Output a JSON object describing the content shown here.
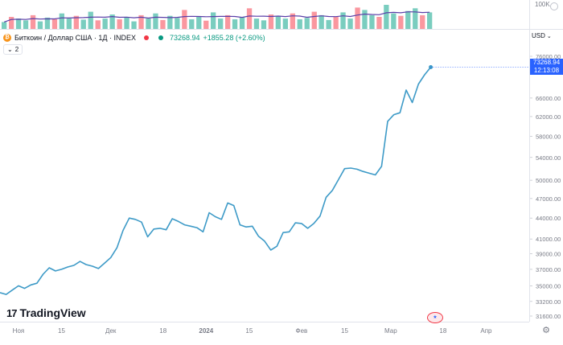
{
  "header": {
    "title": "Биткоин / Доллар США · 1Д · INDEX",
    "price": "73268.94",
    "change": "+1855.28 (+2.60%)",
    "collapse_count": "2",
    "currency": "USD"
  },
  "volume": {
    "axis_label": "100K",
    "values": [
      20,
      35,
      30,
      25,
      40,
      22,
      33,
      28,
      45,
      30,
      38,
      27,
      50,
      25,
      30,
      42,
      28,
      35,
      22,
      40,
      30,
      45,
      26,
      38,
      32,
      55,
      28,
      36,
      24,
      48,
      30,
      40,
      28,
      35,
      60,
      30,
      25,
      42,
      38,
      30,
      45,
      28,
      32,
      50,
      40,
      26,
      35,
      48,
      30,
      62,
      55,
      40,
      35,
      70,
      45,
      38,
      52,
      60,
      40,
      48
    ],
    "up_color": "#22ab94",
    "down_color": "#f7525f"
  },
  "price_axis_labels": [
    "76000.00",
    "66000.00",
    "62000.00",
    "58000.00",
    "54000.00",
    "50000.00",
    "47000.00",
    "44000.00",
    "41000.00",
    "39000.00",
    "37000.00",
    "35000.00",
    "33200.00",
    "31600.00"
  ],
  "last_tag": {
    "price": "73268.94",
    "countdown": "12:13:08"
  },
  "time_axis_labels": [
    "Ноя",
    "15",
    "Дек",
    "18",
    "2024",
    "15",
    "Фев",
    "15",
    "Мар",
    "18",
    "Апр"
  ],
  "logo": {
    "text": "TradingView",
    "mark": "17"
  },
  "chart_data": {
    "type": "line",
    "title": "Биткоин / Доллар США · 1Д · INDEX",
    "x_range": [
      "2023-10-26",
      "2024-04-15"
    ],
    "ylim": [
      31600,
      76000
    ],
    "y_scale": "log",
    "grid": false,
    "line_color": "#3d9ac7",
    "x": [
      "2023-10-26",
      "2023-10-28",
      "2023-10-30",
      "2023-11-01",
      "2023-11-03",
      "2023-11-05",
      "2023-11-07",
      "2023-11-09",
      "2023-11-11",
      "2023-11-13",
      "2023-11-15",
      "2023-11-17",
      "2023-11-19",
      "2023-11-21",
      "2023-11-23",
      "2023-11-25",
      "2023-11-27",
      "2023-11-29",
      "2023-12-01",
      "2023-12-03",
      "2023-12-05",
      "2023-12-07",
      "2023-12-09",
      "2023-12-11",
      "2023-12-13",
      "2023-12-15",
      "2023-12-17",
      "2023-12-19",
      "2023-12-21",
      "2023-12-23",
      "2023-12-25",
      "2023-12-27",
      "2023-12-29",
      "2023-12-31",
      "2024-01-02",
      "2024-01-04",
      "2024-01-06",
      "2024-01-08",
      "2024-01-10",
      "2024-01-12",
      "2024-01-14",
      "2024-01-16",
      "2024-01-18",
      "2024-01-20",
      "2024-01-22",
      "2024-01-24",
      "2024-01-26",
      "2024-01-28",
      "2024-01-30",
      "2024-02-01",
      "2024-02-03",
      "2024-02-05",
      "2024-02-07",
      "2024-02-09",
      "2024-02-11",
      "2024-02-13",
      "2024-02-15",
      "2024-02-17",
      "2024-02-19",
      "2024-02-21",
      "2024-02-23",
      "2024-02-25",
      "2024-02-27",
      "2024-02-29",
      "2024-03-02",
      "2024-03-04",
      "2024-03-06",
      "2024-03-08",
      "2024-03-10",
      "2024-03-12",
      "2024-03-14"
    ],
    "values": [
      34200,
      34000,
      34500,
      35000,
      34700,
      35100,
      35300,
      36400,
      37200,
      36800,
      37000,
      37300,
      37500,
      38000,
      37600,
      37400,
      37100,
      37800,
      38500,
      39800,
      42200,
      44000,
      43800,
      43400,
      41300,
      42400,
      42500,
      42300,
      43900,
      43500,
      43000,
      42800,
      42600,
      42000,
      44800,
      44200,
      43800,
      46300,
      45900,
      43000,
      42700,
      42800,
      41400,
      40700,
      39500,
      40000,
      41900,
      42000,
      43300,
      43200,
      42500,
      43200,
      44300,
      47200,
      48300,
      50100,
      52000,
      52100,
      51900,
      51500,
      51200,
      50900,
      52400,
      61000,
      62400,
      62800,
      67800,
      65000,
      69200,
      71400,
      73268.94
    ]
  }
}
